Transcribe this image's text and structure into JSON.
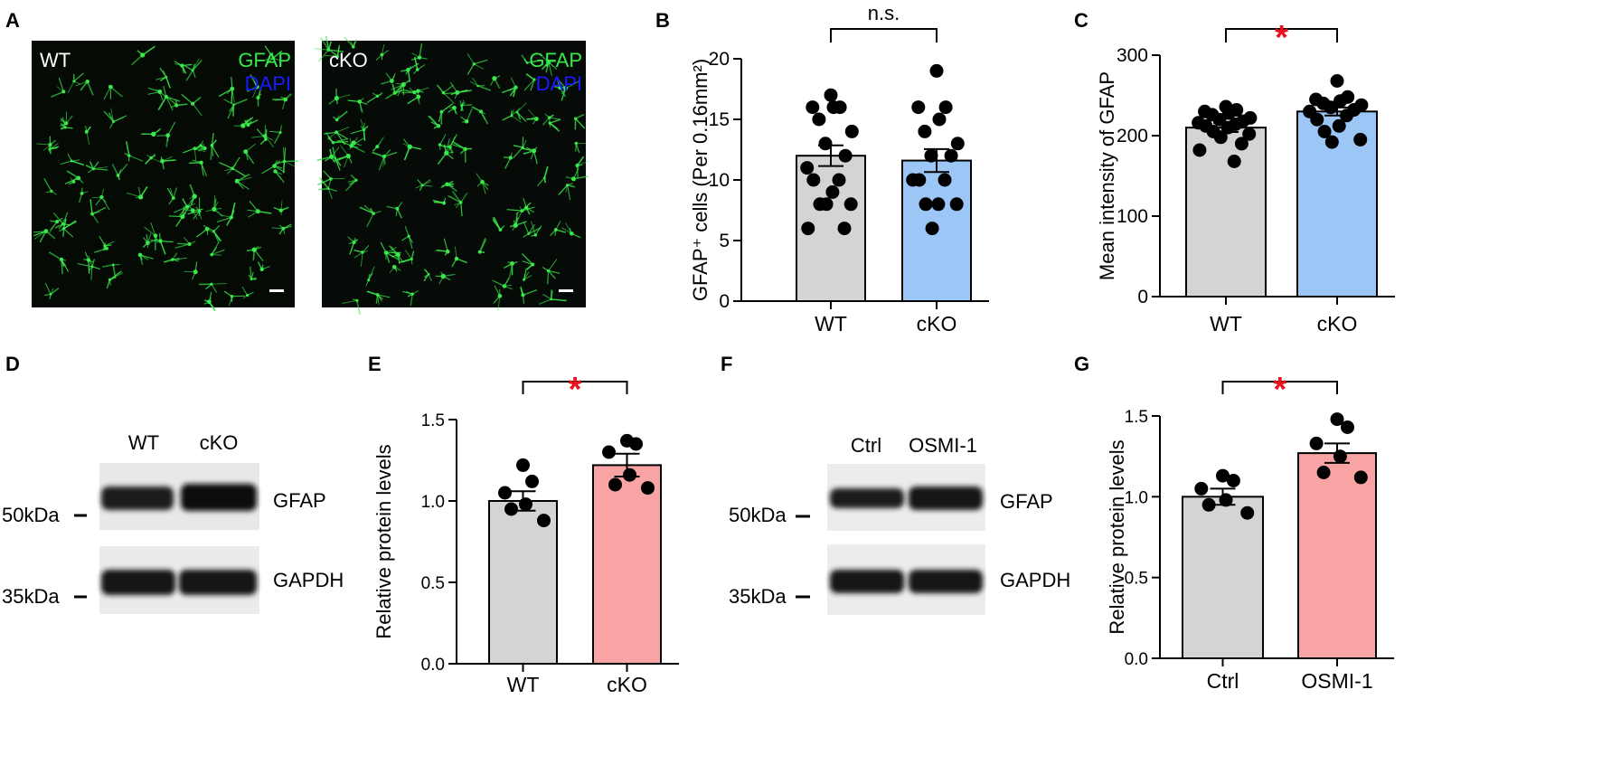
{
  "figure": {
    "panel_labels": [
      "A",
      "B",
      "C",
      "D",
      "E",
      "F",
      "G"
    ],
    "colors": {
      "gray": "#d4d4d4",
      "blue": "#9cc6f5",
      "pink": "#f9a4a4",
      "sig": "#e8121f",
      "micro_green": "#39e84a",
      "micro_blue": "#1a1aff"
    }
  },
  "micrographs": [
    {
      "sample": "WT",
      "stain1": "GFAP",
      "stain2": "DAPI"
    },
    {
      "sample": "cKO",
      "stain1": "GFAP",
      "stain2": "DAPI"
    }
  ],
  "blots": [
    {
      "lanes": [
        "WT",
        "cKO"
      ],
      "bands": [
        "GFAP",
        "GAPDH"
      ],
      "markers": [
        "50kDa",
        "35kDa"
      ]
    },
    {
      "lanes": [
        "Ctrl",
        "OSMI-1"
      ],
      "bands": [
        "GFAP",
        "GAPDH"
      ],
      "markers": [
        "50kDa",
        "35kDa"
      ]
    }
  ],
  "chart_data": [
    {
      "panel": "B",
      "type": "bar",
      "categories": [
        "WT",
        "cKO"
      ],
      "values": [
        12.0,
        11.6
      ],
      "sem": [
        0.85,
        0.95
      ],
      "points": [
        [
          17,
          16,
          16,
          16,
          15,
          14,
          13,
          12,
          11,
          10,
          10,
          9,
          8,
          8,
          8,
          6,
          6
        ],
        [
          19,
          16,
          16,
          15,
          14,
          13,
          12,
          12,
          10,
          10,
          10,
          8,
          8,
          8,
          6
        ]
      ],
      "ylabel": "GFAP⁺ cells (Per 0.16mm²)",
      "ylim": [
        0,
        20
      ],
      "yticks": [
        "0",
        "5",
        "10",
        "15",
        "20"
      ],
      "significance": "n.s."
    },
    {
      "panel": "C",
      "type": "bar",
      "categories": [
        "WT",
        "cKO"
      ],
      "values": [
        210,
        230
      ],
      "sem": [
        5.5,
        5.0
      ],
      "points": [
        [
          236,
          232,
          230,
          228,
          226,
          222,
          220,
          218,
          216,
          214,
          212,
          210,
          205,
          202,
          198,
          190,
          182,
          168
        ],
        [
          268,
          248,
          245,
          243,
          240,
          238,
          235,
          232,
          230,
          225,
          220,
          212,
          205,
          195,
          192
        ]
      ],
      "ylabel": "Mean intensity of GFAP",
      "ylim": [
        0,
        300
      ],
      "yticks": [
        "0",
        "100",
        "200",
        "300"
      ],
      "significance": "*"
    },
    {
      "panel": "E",
      "type": "bar",
      "categories": [
        "WT",
        "cKO"
      ],
      "values": [
        1.0,
        1.22
      ],
      "sem": [
        0.06,
        0.07
      ],
      "points": [
        [
          1.22,
          1.12,
          1.05,
          0.98,
          0.95,
          0.88
        ],
        [
          1.37,
          1.35,
          1.3,
          1.16,
          1.1,
          1.08
        ]
      ],
      "ylabel": "Relative protein levels",
      "ylim": [
        0,
        1.5
      ],
      "yticks": [
        "0.0",
        "0.5",
        "1.0",
        "1.5"
      ],
      "significance": "*"
    },
    {
      "panel": "G",
      "type": "bar",
      "categories": [
        "Ctrl",
        "OSMI-1"
      ],
      "values": [
        1.0,
        1.27
      ],
      "sem": [
        0.05,
        0.06
      ],
      "points": [
        [
          1.13,
          1.1,
          1.05,
          0.98,
          0.95,
          0.9
        ],
        [
          1.48,
          1.43,
          1.33,
          1.25,
          1.15,
          1.12
        ]
      ],
      "ylabel": "Relative protein levels",
      "ylim": [
        0,
        1.5
      ],
      "yticks": [
        "0.0",
        "0.5",
        "1.0",
        "1.5"
      ],
      "significance": "*"
    }
  ]
}
